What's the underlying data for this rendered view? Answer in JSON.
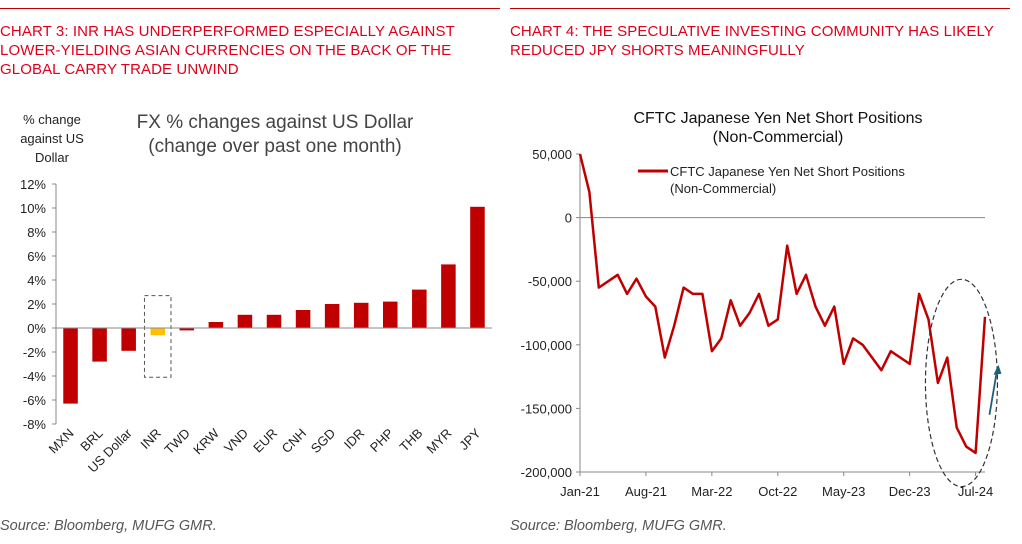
{
  "left": {
    "heading": "CHART 3: INR HAS UNDERPERFORMED ESPECIALLY AGAINST LOWER-YIELDING ASIAN CURRENCIES ON THE BACK OF THE GLOBAL CARRY TRADE UNWIND",
    "source": "Source: Bloomberg, MUFG GMR.",
    "chart_title_1": "FX % changes against US Dollar",
    "chart_title_2": "(change over past one month)",
    "ylabel_1": "% change",
    "ylabel_2": "against US",
    "ylabel_3": "Dollar"
  },
  "right": {
    "heading": "CHART 4: THE SPECULATIVE INVESTING COMMUNITY HAS LIKELY REDUCED JPY SHORTS MEANINGFULLY",
    "source": "Source: Bloomberg, MUFG GMR.",
    "chart_title_1": "CFTC Japanese Yen Net Short Positions",
    "chart_title_2": "(Non-Commercial)",
    "legend_1": "CFTC Japanese Yen Net Short Positions",
    "legend_2": "(Non-Commercial)"
  },
  "colors": {
    "bar": "#c00000",
    "highlight": "#ffc000",
    "line": "#c00000",
    "arrow": "#1f5f7a",
    "heading": "#e0001b"
  },
  "chart_data": [
    {
      "type": "bar",
      "title": "FX % changes against US Dollar (change over past one month)",
      "ylabel": "% change against US Dollar",
      "categories": [
        "MXN",
        "BRL",
        "US Dollar",
        "INR",
        "TWD",
        "KRW",
        "VND",
        "EUR",
        "CNH",
        "SGD",
        "IDR",
        "PHP",
        "THB",
        "MYR",
        "JPY"
      ],
      "values": [
        -6.3,
        -2.8,
        -1.9,
        -0.6,
        -0.2,
        0.5,
        1.1,
        1.1,
        1.5,
        2.0,
        2.1,
        2.2,
        3.2,
        5.3,
        10.1
      ],
      "highlight": "INR",
      "ylim": [
        -8,
        12
      ],
      "yticks": [
        -8,
        -6,
        -4,
        -2,
        0,
        2,
        4,
        6,
        8,
        10,
        12
      ],
      "ytick_labels": [
        "-8%",
        "-6%",
        "-4%",
        "-2%",
        "0%",
        "2%",
        "4%",
        "6%",
        "8%",
        "10%",
        "12%"
      ]
    },
    {
      "type": "line",
      "title": "CFTC Japanese Yen Net Short Positions (Non-Commercial)",
      "series": [
        {
          "name": "CFTC Japanese Yen Net Short Positions (Non-Commercial)",
          "x": [
            "2021-01",
            "2021-02",
            "2021-03",
            "2021-04",
            "2021-05",
            "2021-06",
            "2021-07",
            "2021-08",
            "2021-09",
            "2021-10",
            "2021-11",
            "2021-12",
            "2022-01",
            "2022-02",
            "2022-03",
            "2022-04",
            "2022-05",
            "2022-06",
            "2022-07",
            "2022-08",
            "2022-09",
            "2022-10",
            "2022-11",
            "2022-12",
            "2023-01",
            "2023-02",
            "2023-03",
            "2023-04",
            "2023-05",
            "2023-06",
            "2023-07",
            "2023-08",
            "2023-09",
            "2023-10",
            "2023-11",
            "2023-12",
            "2024-01",
            "2024-02",
            "2024-03",
            "2024-04",
            "2024-05",
            "2024-06",
            "2024-07",
            "2024-08"
          ],
          "values": [
            50000,
            20000,
            -55000,
            -50000,
            -45000,
            -60000,
            -48000,
            -62000,
            -70000,
            -110000,
            -85000,
            -55000,
            -60000,
            -60000,
            -105000,
            -95000,
            -65000,
            -85000,
            -75000,
            -60000,
            -85000,
            -80000,
            -22000,
            -60000,
            -45000,
            -70000,
            -85000,
            -70000,
            -115000,
            -95000,
            -100000,
            -110000,
            -120000,
            -105000,
            -110000,
            -115000,
            -60000,
            -80000,
            -130000,
            -110000,
            -165000,
            -180000,
            -185000,
            -78000
          ]
        }
      ],
      "xtick_labels": [
        "Jan-21",
        "Aug-21",
        "Mar-22",
        "Oct-22",
        "May-23",
        "Dec-23",
        "Jul-24"
      ],
      "xticks": [
        "2021-01",
        "2021-08",
        "2022-03",
        "2022-10",
        "2023-05",
        "2023-12",
        "2024-07"
      ],
      "ylim": [
        -200000,
        50000
      ],
      "yticks": [
        50000,
        0,
        -50000,
        -100000,
        -150000,
        -200000
      ],
      "ytick_labels": [
        "50,000",
        "0",
        "-50,000",
        "-100,000",
        "-150,000",
        "-200,000"
      ]
    }
  ]
}
